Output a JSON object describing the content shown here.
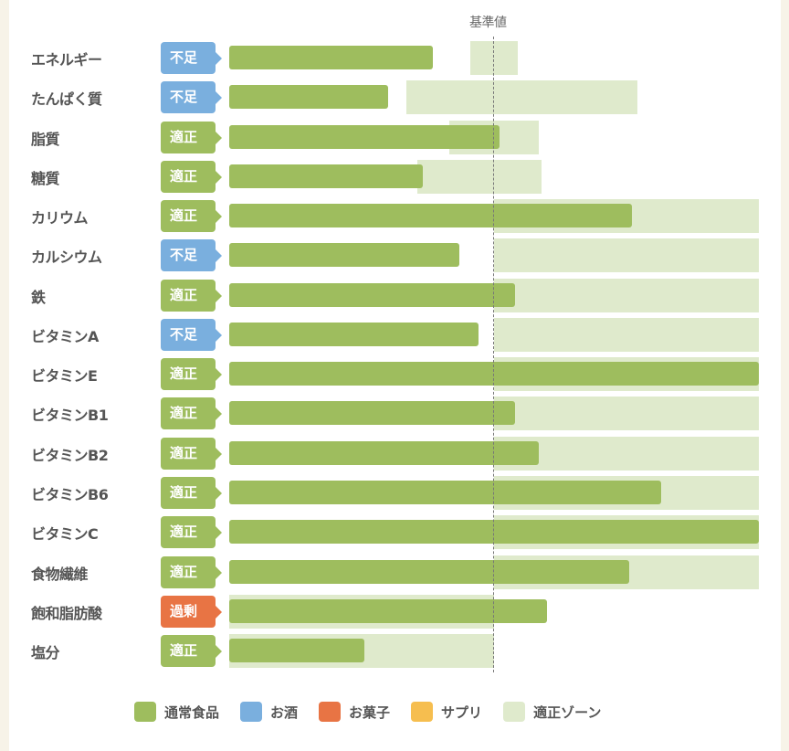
{
  "chart_data": {
    "type": "bar",
    "title": "",
    "reference_label": "基準値",
    "reference_value": 100,
    "xlim": [
      0,
      200
    ],
    "categories": [
      "エネルギー",
      "たんぱく質",
      "脂質",
      "糖質",
      "カリウム",
      "カルシウム",
      "鉄",
      "ビタミンA",
      "ビタミンE",
      "ビタミンB1",
      "ビタミンB2",
      "ビタミンB6",
      "ビタミンC",
      "食物繊維",
      "飽和脂肪酸",
      "塩分"
    ],
    "status": [
      "不足",
      "不足",
      "適正",
      "適正",
      "適正",
      "不足",
      "適正",
      "不足",
      "適正",
      "適正",
      "適正",
      "適正",
      "適正",
      "適正",
      "過剰",
      "適正"
    ],
    "series": [
      {
        "name": "通常食品",
        "values": [
          77,
          60,
          102,
          73,
          152,
          87,
          108,
          94,
          200,
          108,
          117,
          163,
          200,
          151,
          120,
          51
        ]
      }
    ],
    "optimal_zone": [
      [
        91,
        109
      ],
      [
        67,
        154
      ],
      [
        83,
        117
      ],
      [
        71,
        118
      ],
      [
        100,
        200
      ],
      [
        100,
        200
      ],
      [
        100,
        200
      ],
      [
        100,
        200
      ],
      [
        100,
        200
      ],
      [
        100,
        200
      ],
      [
        100,
        200
      ],
      [
        100,
        200
      ],
      [
        100,
        200
      ],
      [
        100,
        200
      ],
      [
        0,
        100
      ],
      [
        0,
        100
      ]
    ],
    "legend": [
      {
        "label": "通常食品",
        "color": "#9ebd5e"
      },
      {
        "label": "お酒",
        "color": "#7aafde"
      },
      {
        "label": "お菓子",
        "color": "#e87444"
      },
      {
        "label": "サプリ",
        "color": "#f6be4f"
      },
      {
        "label": "適正ゾーン",
        "color": "#dfeacc"
      }
    ]
  },
  "status_colors": {
    "不足": "#7aafde",
    "適正": "#9ebd5e",
    "過剰": "#e87444"
  }
}
